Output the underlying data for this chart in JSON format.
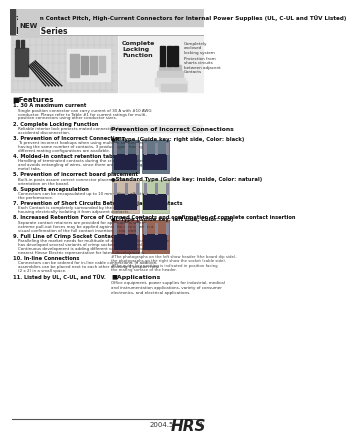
{
  "title_line1": "7.92 mm Contact Pitch, High-Current Connectors for Internal Power Supplies (UL, C-UL and TÜV Listed)",
  "series_name": "DF22 Series",
  "bg_color": "#ffffff",
  "features_header": "■Features",
  "features": [
    [
      "1. 30 A maximum current",
      "Single position connector can carry current of 30 A with #10 AWG\nconductor. Please refer to Table #1 for current ratings for multi-\nposition connectors using other conductor sizes."
    ],
    [
      "2. Complete Locking Function",
      "Reliable interior lock protects mated connectors from\naccidental disconnection."
    ],
    [
      "3. Prevention of Incorrect Connections",
      "To prevent incorrect hookups when using multiple connectors\nhaving the same number of contacts, 3 product types having\ndifferent mating configurations are available."
    ],
    [
      "4. Molded-in contact retention tabs",
      "Handling of terminated contacts during the crimping is easier\nand avoids entangling of wires, since there are no protruding\nmetal tabs."
    ],
    [
      "5. Prevention of incorrect board placement",
      "Built-in posts assure correct connector placement and\norientation on the board."
    ],
    [
      "6. Supports encapsulation",
      "Connectors can be encapsulated up to 10 mm without affecting\nthe performance."
    ],
    [
      "7. Prevention of Short Circuits Between Adjacent Contacts",
      "Each Contact is completely surrounded by the insulator\nhousing electrically isolating it from adjacent contacts."
    ],
    [
      "8. Increased Retention Force of Crimped Contacts and confirmation of complete contact insertion",
      "Separate contact retainers are provided for applications where\nextreme pull-out forces may be applied against the wire or when a\nvisual confirmation of the full contact insertion is required."
    ],
    [
      "9. Full Line of Crimp Socket Contacts",
      "Paralleling the market needs for multitude of different applications, Hirose\nhas developed several variants of crimp socket contacts and housings.\nContinuous development is adding different variations. Contact your\nnearest Hirose Electric representative for latest developments."
    ],
    [
      "10. In-line Connections",
      "Connectors can be ordered for in-line cable connections. In addition,\nassemblies can be placed next to each other allowing 4 position total\n(2 x 2) in a small space."
    ],
    [
      "11. Listed by UL, C-UL, and TÜV.",
      ""
    ]
  ],
  "right_section_title": "Prevention of Incorrect Connections",
  "r_type_label": "●R Type (Guide key: right side, Color: black)",
  "standard_type_label": "●Standard Type (Guide key: inside, Color: natural)",
  "l_type_label": "●L Type (Guide key: left side, Color: red)",
  "locking_label": "Complete\nLocking\nFunction",
  "locking_sub1": "Completely\nenclosed\nlocking system",
  "locking_sub2": "Protection from\nshorts circuits\nbetween adjacent\nContacts",
  "footnotes": [
    "#The photographs on the left show header (the board dip side),",
    "the photographs on the right show the socket (cable side).",
    "#The guide key position is indicated in position facing",
    "the mating surface of the header."
  ],
  "applications_header": "■Applications",
  "applications_text": "Office equipment, power supplies for industrial, medical\nand instrumentation applications, variety of consumer\nelectronics, and electrical applications.",
  "footer_year": "2004.5",
  "footer_logo": "HRS",
  "footer_page": "1"
}
